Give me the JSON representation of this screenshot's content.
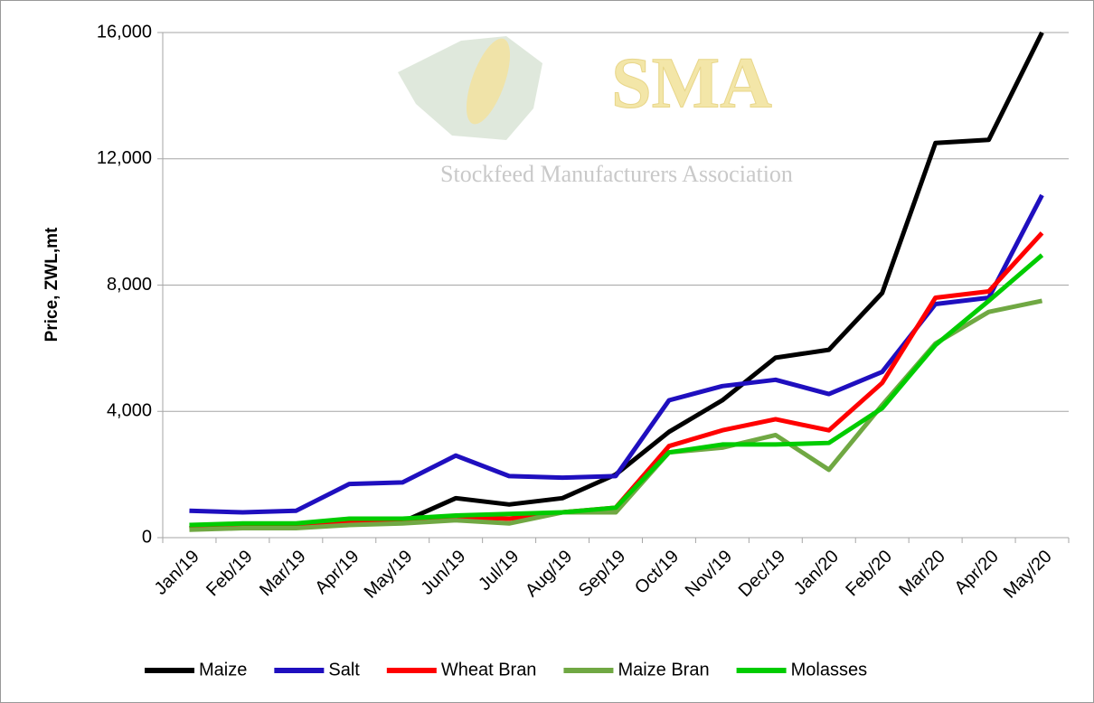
{
  "chart_data": {
    "type": "line",
    "y_label": "Price, ZWL,mt",
    "annotations": [
      "SMA",
      "Stockfeed Manufacturers Association"
    ],
    "categories": [
      "Jan/19",
      "Feb/19",
      "Mar/19",
      "Apr/19",
      "May/19",
      "Jun/19",
      "Jul/19",
      "Aug/19",
      "Sep/19",
      "Oct/19",
      "Nov/19",
      "Dec/19",
      "Jan/20",
      "Feb/20",
      "Mar/20",
      "Apr/20",
      "May/20"
    ],
    "series": [
      {
        "name": "Maize",
        "color": "#000000",
        "values": [
          300,
          400,
          400,
          450,
          500,
          1250,
          1050,
          1250,
          2000,
          3350,
          4350,
          5700,
          5950,
          7750,
          12500,
          12600,
          16000
        ]
      },
      {
        "name": "Salt",
        "color": "#1f0fbf",
        "values": [
          850,
          800,
          850,
          1700,
          1750,
          2600,
          1950,
          1900,
          1950,
          4350,
          4800,
          5000,
          4550,
          5250,
          7400,
          7600,
          10850
        ]
      },
      {
        "name": "Wheat Bran",
        "color": "#ff0000",
        "values": [
          300,
          350,
          400,
          500,
          550,
          650,
          600,
          800,
          950,
          2900,
          3400,
          3750,
          3400,
          4900,
          7600,
          7800,
          9650
        ]
      },
      {
        "name": "Maize Bran",
        "color": "#70a843",
        "values": [
          250,
          300,
          300,
          400,
          450,
          550,
          450,
          800,
          800,
          2700,
          2850,
          3250,
          2150,
          4200,
          6150,
          7150,
          7500
        ]
      },
      {
        "name": "Molasses",
        "color": "#00cc00",
        "values": [
          400,
          450,
          450,
          600,
          600,
          700,
          750,
          800,
          950,
          2700,
          2950,
          2950,
          3000,
          4100,
          6100,
          7500,
          8950
        ]
      }
    ],
    "ylim": [
      0,
      16000
    ],
    "yticks": [
      0,
      {
        "value": 4000,
        "label": "4,000"
      },
      {
        "value": 8000,
        "label": "8,000"
      },
      {
        "value": 12000,
        "label": "12,000"
      },
      {
        "value": 16000,
        "label": "16,000"
      }
    ],
    "grid": true,
    "legend": "bottom"
  }
}
